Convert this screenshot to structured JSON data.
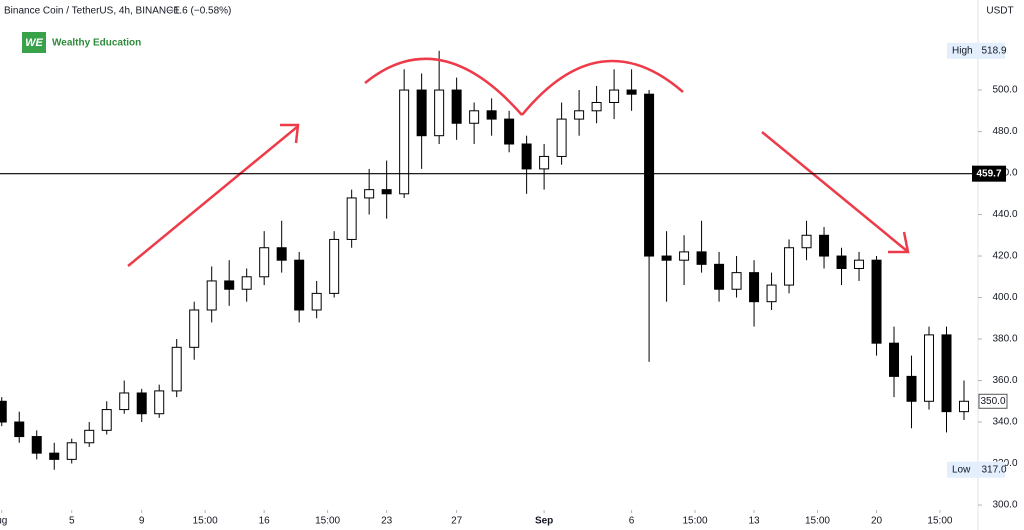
{
  "header": {
    "title": "Binance Coin / TetherUS, 4h, BINANCE",
    "change": "−1.6 (−0.58%)",
    "brand_logo": "WE",
    "brand": "Wealthy Education"
  },
  "chart_data": {
    "type": "candlestick",
    "unit": "USDT",
    "x": [
      0,
      1,
      2,
      3,
      4,
      5,
      6,
      7,
      8,
      9,
      10,
      11,
      12,
      13,
      14,
      15,
      16,
      17,
      18,
      19,
      20,
      21,
      22,
      23,
      24,
      25,
      26,
      27,
      28,
      29,
      30,
      31,
      32,
      33,
      34,
      35,
      36,
      37,
      38,
      39,
      40,
      41,
      42,
      43,
      44,
      45,
      46,
      47,
      48,
      49,
      50,
      51,
      52,
      53,
      54,
      55
    ],
    "open": [
      350,
      340,
      333,
      325,
      322,
      330,
      336,
      346,
      354,
      344,
      355,
      376,
      394,
      408,
      404,
      410,
      424,
      418,
      394,
      402,
      428,
      448,
      452,
      450,
      500,
      478,
      500,
      484,
      490,
      486,
      474,
      462,
      468,
      486,
      490,
      494,
      500,
      498,
      420,
      418,
      422,
      416,
      404,
      412,
      398,
      406,
      424,
      430,
      420,
      414,
      418,
      378,
      362,
      350,
      382,
      345
    ],
    "high": [
      352,
      345,
      336,
      330,
      332,
      340,
      350,
      360,
      356,
      358,
      380,
      398,
      415,
      418,
      414,
      432,
      437,
      422,
      408,
      432,
      452,
      462,
      466,
      510,
      508,
      518.9,
      506,
      494,
      496,
      490,
      478,
      474,
      494,
      500,
      502,
      510,
      510,
      500,
      432,
      430,
      437,
      422,
      420,
      418,
      412,
      428,
      437,
      434,
      424,
      422,
      420,
      386,
      372,
      386,
      386,
      360
    ],
    "low": [
      338,
      330,
      322,
      317,
      320,
      328,
      334,
      344,
      340,
      342,
      352,
      370,
      388,
      396,
      398,
      406,
      412,
      388,
      390,
      400,
      424,
      440,
      438,
      448,
      462,
      474,
      476,
      474,
      478,
      470,
      450,
      452,
      464,
      478,
      484,
      486,
      490,
      369,
      398,
      406,
      412,
      398,
      400,
      386,
      394,
      402,
      418,
      414,
      406,
      408,
      372,
      352,
      337,
      346,
      335,
      341
    ],
    "close": [
      340,
      333,
      325,
      322,
      330,
      336,
      346,
      354,
      344,
      355,
      376,
      394,
      408,
      404,
      410,
      424,
      418,
      394,
      402,
      428,
      448,
      452,
      450,
      500,
      478,
      500,
      484,
      490,
      486,
      474,
      462,
      468,
      486,
      490,
      494,
      500,
      498,
      420,
      418,
      422,
      416,
      404,
      412,
      398,
      406,
      424,
      430,
      420,
      414,
      418,
      378,
      362,
      350,
      382,
      345,
      350
    ],
    "up_color": "#ffffff",
    "down_color": "#000000",
    "wick_color": "#000000",
    "xlim": [
      -0.1,
      55.8
    ],
    "xticks": [
      {
        "value": 0,
        "label": "ug"
      },
      {
        "value": 4,
        "label": "5"
      },
      {
        "value": 8,
        "label": "9"
      },
      {
        "value": 11.625,
        "label": "15:00"
      },
      {
        "value": 15,
        "label": "16"
      },
      {
        "value": 18.625,
        "label": "15:00"
      },
      {
        "value": 22,
        "label": "23"
      },
      {
        "value": 26,
        "label": "27"
      },
      {
        "value": 31,
        "label": "Sep"
      },
      {
        "value": 36,
        "label": "6"
      },
      {
        "value": 39.625,
        "label": "15:00"
      },
      {
        "value": 43,
        "label": "13"
      },
      {
        "value": 46.625,
        "label": "15:00"
      },
      {
        "value": 50,
        "label": "20"
      },
      {
        "value": 53.625,
        "label": "15:00"
      }
    ],
    "ylim": [
      297.6,
      543.4
    ],
    "yticks": [
      {
        "value": 300,
        "label": "300.0"
      },
      {
        "value": 320,
        "label": "320.0"
      },
      {
        "value": 340,
        "label": "340.0"
      },
      {
        "value": 360,
        "label": "360.0"
      },
      {
        "value": 380,
        "label": "380.0"
      },
      {
        "value": 400,
        "label": "400.0"
      },
      {
        "value": 420,
        "label": "420.0"
      },
      {
        "value": 440,
        "label": "440.0"
      },
      {
        "value": 460,
        "label": "460.0"
      },
      {
        "value": 480,
        "label": "480.0"
      },
      {
        "value": 500,
        "label": "500.0"
      }
    ],
    "level_line": 459.7,
    "high_marker": {
      "name": "High",
      "value": 518.9
    },
    "low_marker": {
      "name": "Low",
      "value": {
        "value": 317,
        "label": "317.0"
      }
    },
    "last_price": {
      "value": 350,
      "label": "350.0"
    }
  }
}
